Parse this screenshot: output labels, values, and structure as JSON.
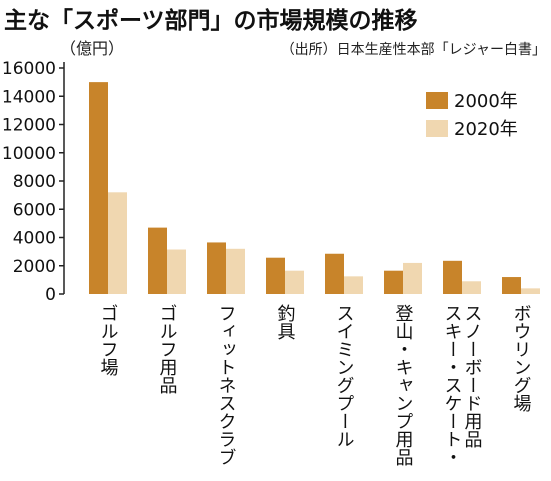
{
  "chart_data": {
    "type": "bar",
    "title": "主な「スポーツ部門」の市場規模の推移",
    "unit_label": "（億円）",
    "source": "（出所）日本生産性本部「レジャー白書」",
    "categories": [
      [
        "ゴルフ場"
      ],
      [
        "ゴルフ用品"
      ],
      [
        "フィットネスクラブ"
      ],
      [
        "釣具"
      ],
      [
        "スイミングプール"
      ],
      [
        "登山・キャンプ用品"
      ],
      [
        "スキー・スケート・",
        "スノーボード用品"
      ],
      [
        "ボウリング場"
      ]
    ],
    "series": [
      {
        "name": "2000年",
        "color": "#c8842a",
        "values": [
          15000,
          4700,
          3650,
          2570,
          2850,
          1650,
          2350,
          1200
        ]
      },
      {
        "name": "2020年",
        "color": "#f0d7b0",
        "values": [
          7200,
          3150,
          3200,
          1650,
          1250,
          2200,
          900,
          400
        ]
      }
    ],
    "yticks": [
      0,
      2000,
      4000,
      6000,
      8000,
      10000,
      12000,
      14000,
      16000
    ],
    "ylim": [
      0,
      16000
    ],
    "grid": false,
    "legend": "top-right"
  }
}
